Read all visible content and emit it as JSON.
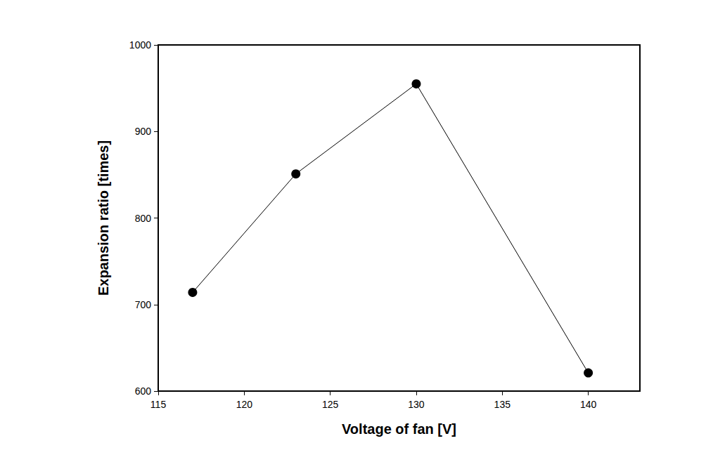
{
  "chart_data": {
    "type": "line",
    "xlabel": "Voltage of fan [V]",
    "ylabel": "Expansion ratio [times]",
    "x": [
      117,
      123,
      130,
      140
    ],
    "values": [
      714,
      851,
      955,
      621
    ],
    "color": "#000000",
    "marker": "circle",
    "line_style": "solid",
    "xlim": [
      115,
      143
    ],
    "ylim": [
      600,
      1000
    ],
    "xticks": [
      115,
      120,
      125,
      130,
      135,
      140
    ],
    "yticks": [
      600,
      700,
      800,
      900,
      1000
    ],
    "grid": false
  }
}
